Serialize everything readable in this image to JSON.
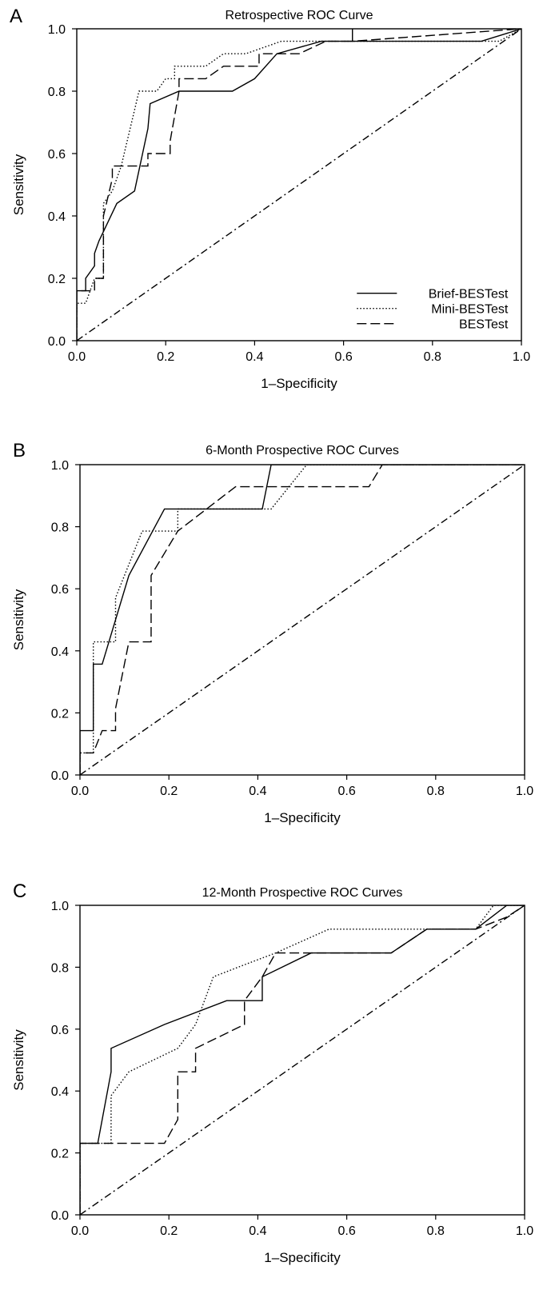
{
  "chart_data": [
    {
      "panel": "A",
      "type": "line",
      "title": "Retrospective ROC Curve",
      "xlabel": "1–Specificity",
      "ylabel": "Sensitivity",
      "xlim": [
        0,
        1
      ],
      "ylim": [
        0,
        1
      ],
      "xticks": [
        "0.0",
        "0.2",
        "0.4",
        "0.6",
        "0.8",
        "1.0"
      ],
      "yticks": [
        "0.0",
        "0.2",
        "0.4",
        "0.6",
        "0.8",
        "1.0"
      ],
      "grid": false,
      "legend_position": "bottom-right",
      "series": [
        {
          "name": "Brief-BESTest",
          "line_style": "solid",
          "x": [
            0.0,
            0.0,
            0.02,
            0.02,
            0.04,
            0.04,
            0.05,
            0.09,
            0.13,
            0.16,
            0.165,
            0.23,
            0.35,
            0.4,
            0.45,
            0.55,
            0.91,
            1.0
          ],
          "y": [
            0.0,
            0.16,
            0.16,
            0.2,
            0.24,
            0.28,
            0.32,
            0.44,
            0.48,
            0.68,
            0.76,
            0.8,
            0.8,
            0.84,
            0.92,
            0.96,
            0.96,
            1.0
          ]
        },
        {
          "name": "Mini-BESTest",
          "line_style": "dotted",
          "x": [
            0.0,
            0.0,
            0.01,
            0.02,
            0.03,
            0.04,
            0.06,
            0.06,
            0.08,
            0.1,
            0.12,
            0.14,
            0.18,
            0.2,
            0.22,
            0.22,
            0.29,
            0.33,
            0.38,
            0.46,
            0.55,
            0.95,
            1.0
          ],
          "y": [
            0.0,
            0.12,
            0.12,
            0.12,
            0.16,
            0.2,
            0.2,
            0.44,
            0.48,
            0.56,
            0.68,
            0.8,
            0.8,
            0.84,
            0.84,
            0.88,
            0.88,
            0.92,
            0.92,
            0.96,
            0.96,
            0.96,
            1.0
          ]
        },
        {
          "name": "BESTest",
          "line_style": "dashed",
          "x": [
            0.0,
            0.0,
            0.04,
            0.04,
            0.06,
            0.06,
            0.08,
            0.08,
            0.1,
            0.16,
            0.16,
            0.21,
            0.21,
            0.23,
            0.23,
            0.29,
            0.33,
            0.39,
            0.41,
            0.41,
            0.45,
            0.5,
            0.56,
            0.62,
            0.62,
            0.62,
            1.0
          ],
          "y": [
            0.0,
            0.16,
            0.16,
            0.2,
            0.2,
            0.4,
            0.52,
            0.56,
            0.56,
            0.56,
            0.6,
            0.6,
            0.64,
            0.8,
            0.84,
            0.84,
            0.88,
            0.88,
            0.88,
            0.92,
            0.92,
            0.92,
            0.96,
            0.96,
            1.0,
            0.96,
            1.0
          ]
        },
        {
          "name": "",
          "line_style": "dashdot",
          "x": [
            0.0,
            1.0
          ],
          "y": [
            0.0,
            1.0
          ]
        }
      ]
    },
    {
      "panel": "B",
      "type": "line",
      "title": "6-Month Prospective ROC Curves",
      "xlabel": "1–Specificity",
      "ylabel": "Sensitivity",
      "xlim": [
        0,
        1
      ],
      "ylim": [
        0,
        1
      ],
      "xticks": [
        "0.0",
        "0.2",
        "0.4",
        "0.6",
        "0.8",
        "1.0"
      ],
      "yticks": [
        "0.0",
        "0.2",
        "0.4",
        "0.6",
        "0.8",
        "1.0"
      ],
      "grid": false,
      "legend_position": "",
      "series": [
        {
          "name": "Brief-BESTest",
          "line_style": "solid",
          "x": [
            0.0,
            0.0,
            0.03,
            0.03,
            0.05,
            0.11,
            0.19,
            0.22,
            0.41,
            0.43,
            1.0
          ],
          "y": [
            0.0,
            0.143,
            0.143,
            0.357,
            0.357,
            0.643,
            0.857,
            0.857,
            0.857,
            1.0,
            1.0
          ],
          "y_note": ""
        },
        {
          "name": "Mini-BESTest",
          "line_style": "dotted",
          "x": [
            0.0,
            0.0,
            0.03,
            0.03,
            0.08,
            0.08,
            0.14,
            0.22,
            0.22,
            0.43,
            0.51,
            1.0
          ],
          "y": [
            0.0,
            0.071,
            0.071,
            0.429,
            0.429,
            0.571,
            0.786,
            0.786,
            0.857,
            0.857,
            1.0,
            1.0
          ]
        },
        {
          "name": "BESTest",
          "line_style": "dashed",
          "x": [
            0.0,
            0.0,
            0.03,
            0.05,
            0.08,
            0.08,
            0.11,
            0.16,
            0.16,
            0.22,
            0.35,
            0.65,
            0.68,
            1.0
          ],
          "y": [
            0.0,
            0.071,
            0.071,
            0.143,
            0.143,
            0.214,
            0.429,
            0.429,
            0.643,
            0.786,
            0.929,
            0.929,
            1.0,
            1.0
          ]
        },
        {
          "name": "",
          "line_style": "dashdot",
          "x": [
            0.0,
            1.0
          ],
          "y": [
            0.0,
            1.0
          ]
        }
      ]
    },
    {
      "panel": "C",
      "type": "line",
      "title": "12-Month Prospective ROC Curves",
      "xlabel": "1–Specificity",
      "ylabel": "Sensitivity",
      "xlim": [
        0,
        1
      ],
      "ylim": [
        0,
        1
      ],
      "xticks": [
        "0.0",
        "0.2",
        "0.4",
        "0.6",
        "0.8",
        "1.0"
      ],
      "yticks": [
        "0.0",
        "0.2",
        "0.4",
        "0.6",
        "0.8",
        "1.0"
      ],
      "grid": false,
      "legend_position": "",
      "series": [
        {
          "name": "Brief-BESTest",
          "line_style": "solid",
          "x": [
            0.0,
            0.0,
            0.04,
            0.07,
            0.07,
            0.19,
            0.33,
            0.41,
            0.41,
            0.52,
            0.7,
            0.78,
            0.89,
            0.96,
            1.0
          ],
          "y": [
            0.0,
            0.231,
            0.231,
            0.462,
            0.538,
            0.615,
            0.692,
            0.692,
            0.769,
            0.846,
            0.846,
            0.923,
            0.923,
            1.0,
            1.0
          ]
        },
        {
          "name": "Mini-BESTest",
          "line_style": "dotted",
          "x": [
            0.0,
            0.0,
            0.07,
            0.07,
            0.11,
            0.22,
            0.26,
            0.3,
            0.37,
            0.44,
            0.56,
            0.89,
            0.93,
            1.0
          ],
          "y": [
            0.0,
            0.231,
            0.231,
            0.385,
            0.462,
            0.538,
            0.615,
            0.769,
            0.808,
            0.846,
            0.923,
            0.923,
            1.0,
            1.0
          ]
        },
        {
          "name": "BESTest",
          "line_style": "dashed",
          "x": [
            0.0,
            0.0,
            0.19,
            0.22,
            0.22,
            0.26,
            0.26,
            0.37,
            0.37,
            0.41,
            0.44,
            0.7,
            0.78,
            0.89,
            0.96,
            1.0
          ],
          "y": [
            0.0,
            0.231,
            0.231,
            0.308,
            0.462,
            0.462,
            0.538,
            0.615,
            0.692,
            0.769,
            0.846,
            0.846,
            0.923,
            0.923,
            0.962,
            1.0
          ]
        },
        {
          "name": "",
          "line_style": "dashdot",
          "x": [
            0.0,
            1.0
          ],
          "y": [
            0.0,
            1.0
          ]
        }
      ]
    }
  ]
}
